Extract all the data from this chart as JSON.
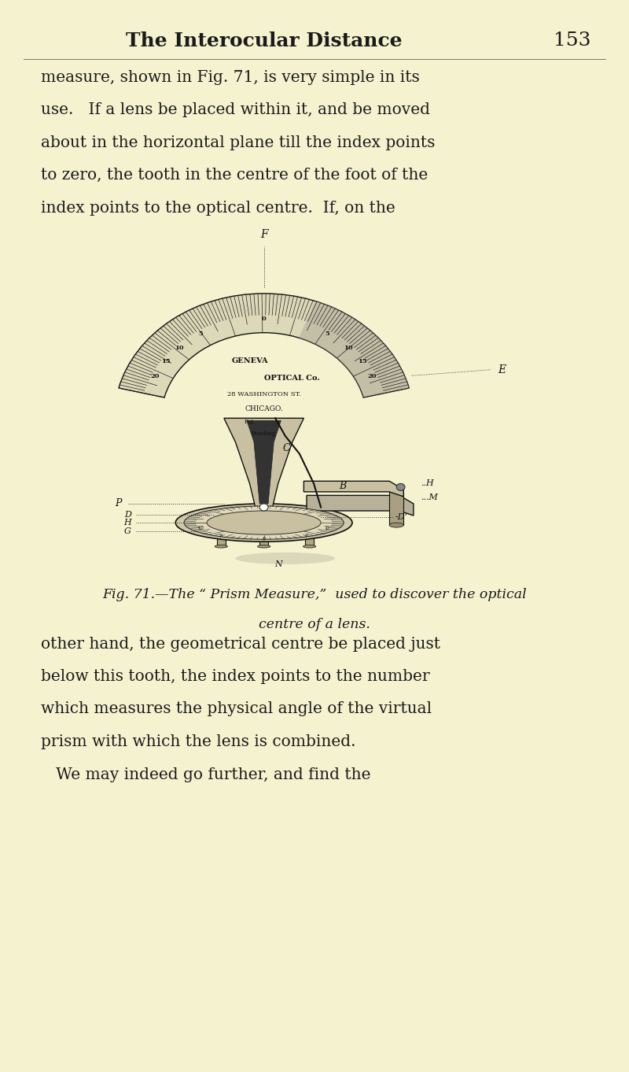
{
  "bg_color": "#f5f2d0",
  "page_width": 8.0,
  "page_height": 13.62,
  "dpi": 100,
  "header_title": "The Interocular Distance",
  "header_page": "153",
  "top_text_lines": [
    "measure, shown in Fig. 71, is very simple in its",
    "use.   If a lens be placed within it, and be moved",
    "about in the horizontal plane till the index points",
    "to zero, the tooth in the centre of the foot of the",
    "index points to the optical centre.  If, on the"
  ],
  "caption_line1": "Fig. 71.—The “ Prism Measure,”  used to discover the optical",
  "caption_line2": "centre of a lens.",
  "lower_text_lines": [
    "other hand, the geometrical centre be placed just",
    "below this tooth, the index points to the number",
    "which measures the physical angle of the virtual",
    "prism with which the lens is combined.",
    "   We may indeed go further, and find the"
  ]
}
